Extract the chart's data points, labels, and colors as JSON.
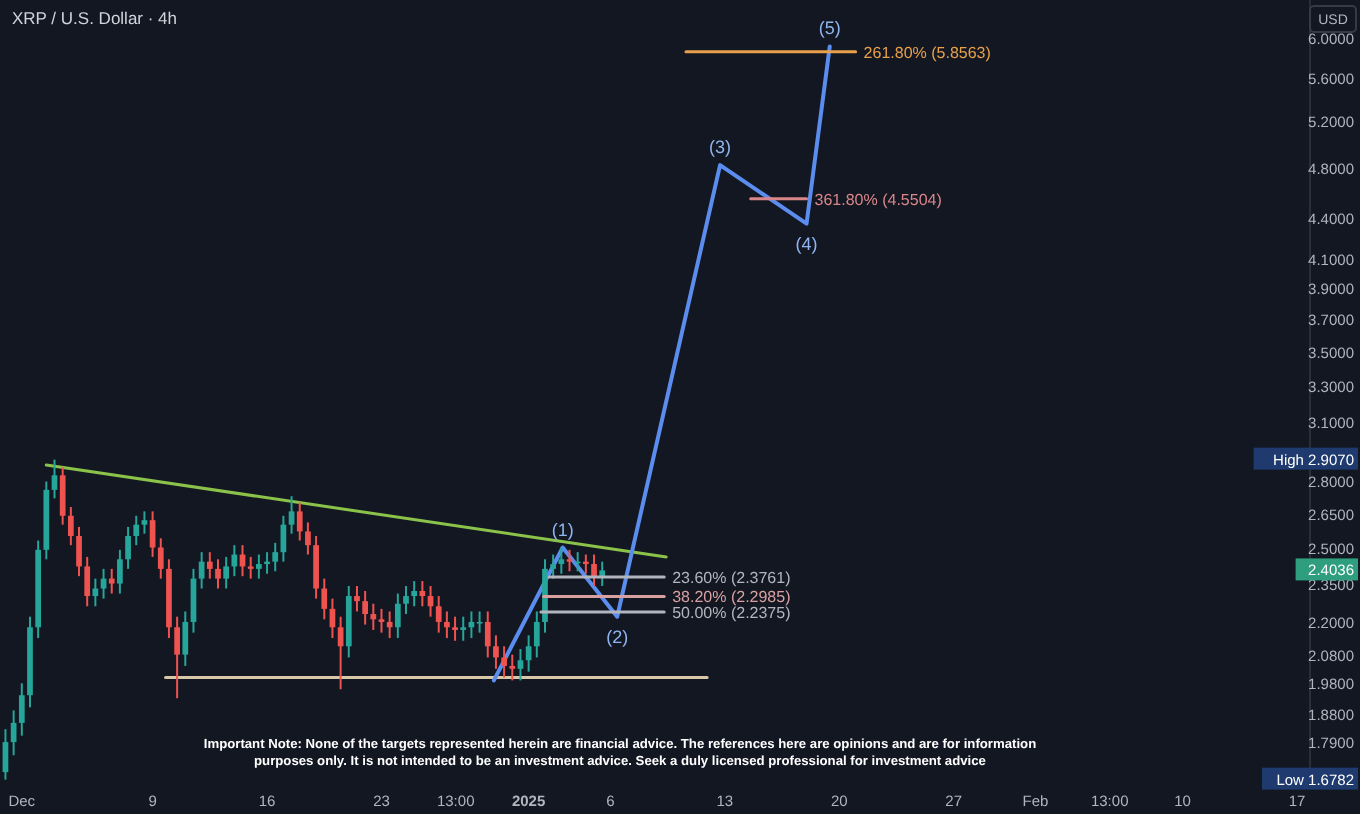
{
  "chart_data": {
    "type": "candlestick",
    "title": "XRP / U.S. Dollar · 4h",
    "log": "y",
    "xlim": [
      "2024-11-29T16:00",
      "2025-02-17T19:00"
    ],
    "xticks": [
      {
        "value": "2024-12-01",
        "label": "Dec"
      },
      {
        "value": "2024-12-09",
        "label": "9"
      },
      {
        "value": "2024-12-16",
        "label": "16"
      },
      {
        "value": "2024-12-23",
        "label": "23"
      },
      {
        "value": "2024-12-27T13:00",
        "label": "13:00"
      },
      {
        "value": "2025-01-01",
        "label": "2025"
      },
      {
        "value": "2025-01-06",
        "label": "6"
      },
      {
        "value": "2025-01-13",
        "label": "13"
      },
      {
        "value": "2025-01-20",
        "label": "20"
      },
      {
        "value": "2025-01-27",
        "label": "27"
      },
      {
        "value": "2025-02-01",
        "label": "Feb"
      },
      {
        "value": "2025-02-05T13:00",
        "label": "13:00"
      },
      {
        "value": "2025-02-10",
        "label": "10"
      },
      {
        "value": "2025-02-17",
        "label": "17"
      }
    ],
    "ylim": [
      1.66,
      6.4
    ],
    "yticks": [
      {
        "value": 6,
        "label": "6.0000"
      },
      {
        "value": 5.6,
        "label": "5.6000"
      },
      {
        "value": 5.2,
        "label": "5.2000"
      },
      {
        "value": 4.8,
        "label": "4.8000"
      },
      {
        "value": 4.4,
        "label": "4.4000"
      },
      {
        "value": 4.1,
        "label": "4.1000"
      },
      {
        "value": 3.9,
        "label": "3.9000"
      },
      {
        "value": 3.7,
        "label": "3.7000"
      },
      {
        "value": 3.5,
        "label": "3.5000"
      },
      {
        "value": 3.3,
        "label": "3.3000"
      },
      {
        "value": 3.1,
        "label": "3.1000"
      },
      {
        "value": 2.8,
        "label": "2.8000"
      },
      {
        "value": 2.65,
        "label": "2.6500"
      },
      {
        "value": 2.5,
        "label": "2.5000"
      },
      {
        "value": 2.35,
        "label": "2.3500"
      },
      {
        "value": 2.2,
        "label": "2.2000"
      },
      {
        "value": 2.08,
        "label": "2.0800"
      },
      {
        "value": 1.98,
        "label": "1.9800"
      },
      {
        "value": 1.88,
        "label": "1.8800"
      },
      {
        "value": 1.79,
        "label": "1.7900"
      }
    ],
    "x": [
      "2024-11-30T00:00",
      "2024-11-30T12:00",
      "2024-12-01T00:00",
      "2024-12-01T12:00",
      "2024-12-02T00:00",
      "2024-12-02T12:00",
      "2024-12-03T00:00",
      "2024-12-03T12:00",
      "2024-12-04T00:00",
      "2024-12-04T12:00",
      "2024-12-05T00:00",
      "2024-12-05T12:00",
      "2024-12-06T00:00",
      "2024-12-06T12:00",
      "2024-12-07T00:00",
      "2024-12-07T12:00",
      "2024-12-08T00:00",
      "2024-12-08T12:00",
      "2024-12-09T00:00",
      "2024-12-09T12:00",
      "2024-12-10T00:00",
      "2024-12-10T12:00",
      "2024-12-11T00:00",
      "2024-12-11T12:00",
      "2024-12-12T00:00",
      "2024-12-12T12:00",
      "2024-12-13T00:00",
      "2024-12-13T12:00",
      "2024-12-14T00:00",
      "2024-12-14T12:00",
      "2024-12-15T00:00",
      "2024-12-15T12:00",
      "2024-12-16T00:00",
      "2024-12-16T12:00",
      "2024-12-17T00:00",
      "2024-12-17T12:00",
      "2024-12-18T00:00",
      "2024-12-18T12:00",
      "2024-12-19T00:00",
      "2024-12-19T12:00",
      "2024-12-20T00:00",
      "2024-12-20T12:00",
      "2024-12-21T00:00",
      "2024-12-21T12:00",
      "2024-12-22T00:00",
      "2024-12-22T12:00",
      "2024-12-23T00:00",
      "2024-12-23T12:00",
      "2024-12-24T00:00",
      "2024-12-24T12:00",
      "2024-12-25T00:00",
      "2024-12-25T12:00",
      "2024-12-26T00:00",
      "2024-12-26T12:00",
      "2024-12-27T00:00",
      "2024-12-27T12:00",
      "2024-12-28T00:00",
      "2024-12-28T12:00",
      "2024-12-29T00:00",
      "2024-12-29T12:00",
      "2024-12-30T00:00",
      "2024-12-30T12:00",
      "2024-12-31T00:00",
      "2024-12-31T12:00",
      "2025-01-01T00:00",
      "2025-01-01T12:00",
      "2025-01-02T00:00",
      "2025-01-02T12:00",
      "2025-01-03T00:00",
      "2025-01-03T12:00",
      "2025-01-04T00:00",
      "2025-01-04T12:00",
      "2025-01-05T00:00",
      "2025-01-05T12:00"
    ],
    "ohlc": [
      [
        1.7,
        1.83,
        1.6782,
        1.79
      ],
      [
        1.79,
        1.89,
        1.75,
        1.85
      ],
      [
        1.85,
        1.98,
        1.81,
        1.94
      ],
      [
        1.94,
        2.22,
        1.9,
        2.18
      ],
      [
        2.18,
        2.53,
        2.14,
        2.49
      ],
      [
        2.49,
        2.8,
        2.45,
        2.76
      ],
      [
        2.76,
        2.907,
        2.72,
        2.83
      ],
      [
        2.83,
        2.87,
        2.6,
        2.64
      ],
      [
        2.64,
        2.68,
        2.51,
        2.55
      ],
      [
        2.55,
        2.59,
        2.38,
        2.42
      ],
      [
        2.42,
        2.46,
        2.26,
        2.3
      ],
      [
        2.3,
        2.37,
        2.26,
        2.33
      ],
      [
        2.33,
        2.41,
        2.29,
        2.37
      ],
      [
        2.37,
        2.41,
        2.31,
        2.35
      ],
      [
        2.35,
        2.49,
        2.31,
        2.45
      ],
      [
        2.45,
        2.59,
        2.41,
        2.55
      ],
      [
        2.55,
        2.64,
        2.51,
        2.6
      ],
      [
        2.6,
        2.66,
        2.56,
        2.62
      ],
      [
        2.62,
        2.66,
        2.46,
        2.5
      ],
      [
        2.5,
        2.54,
        2.37,
        2.41
      ],
      [
        2.41,
        2.45,
        2.14,
        2.18
      ],
      [
        2.18,
        2.22,
        1.93,
        2.08
      ],
      [
        2.08,
        2.24,
        2.04,
        2.2
      ],
      [
        2.2,
        2.41,
        2.16,
        2.37
      ],
      [
        2.37,
        2.48,
        2.33,
        2.44
      ],
      [
        2.44,
        2.48,
        2.37,
        2.41
      ],
      [
        2.41,
        2.45,
        2.33,
        2.37
      ],
      [
        2.37,
        2.46,
        2.33,
        2.42
      ],
      [
        2.42,
        2.51,
        2.38,
        2.47
      ],
      [
        2.47,
        2.51,
        2.38,
        2.42
      ],
      [
        2.42,
        2.46,
        2.37,
        2.41
      ],
      [
        2.41,
        2.47,
        2.37,
        2.43
      ],
      [
        2.43,
        2.48,
        2.39,
        2.44
      ],
      [
        2.44,
        2.52,
        2.4,
        2.48
      ],
      [
        2.48,
        2.64,
        2.44,
        2.6
      ],
      [
        2.6,
        2.73,
        2.56,
        2.66
      ],
      [
        2.66,
        2.7,
        2.53,
        2.57
      ],
      [
        2.57,
        2.61,
        2.47,
        2.51
      ],
      [
        2.51,
        2.55,
        2.29,
        2.33
      ],
      [
        2.33,
        2.37,
        2.21,
        2.25
      ],
      [
        2.25,
        2.29,
        2.14,
        2.18
      ],
      [
        2.18,
        2.22,
        1.96,
        2.11
      ],
      [
        2.11,
        2.34,
        2.07,
        2.3
      ],
      [
        2.3,
        2.34,
        2.24,
        2.28
      ],
      [
        2.28,
        2.32,
        2.19,
        2.23
      ],
      [
        2.23,
        2.27,
        2.17,
        2.21
      ],
      [
        2.21,
        2.25,
        2.16,
        2.2
      ],
      [
        2.2,
        2.24,
        2.14,
        2.18
      ],
      [
        2.18,
        2.31,
        2.14,
        2.27
      ],
      [
        2.27,
        2.34,
        2.23,
        2.3
      ],
      [
        2.3,
        2.36,
        2.26,
        2.32
      ],
      [
        2.32,
        2.36,
        2.26,
        2.3
      ],
      [
        2.3,
        2.34,
        2.22,
        2.26
      ],
      [
        2.26,
        2.3,
        2.16,
        2.2
      ],
      [
        2.2,
        2.24,
        2.14,
        2.18
      ],
      [
        2.18,
        2.22,
        2.13,
        2.17
      ],
      [
        2.17,
        2.22,
        2.13,
        2.18
      ],
      [
        2.18,
        2.24,
        2.14,
        2.2
      ],
      [
        2.2,
        2.24,
        2.16,
        2.2
      ],
      [
        2.2,
        2.24,
        2.07,
        2.11
      ],
      [
        2.11,
        2.15,
        2.03,
        2.07
      ],
      [
        2.07,
        2.11,
        2.0,
        2.04
      ],
      [
        2.04,
        2.08,
        1.99,
        2.03
      ],
      [
        2.03,
        2.1,
        1.99,
        2.06
      ],
      [
        2.06,
        2.15,
        2.02,
        2.11
      ],
      [
        2.11,
        2.24,
        2.07,
        2.2
      ],
      [
        2.2,
        2.45,
        2.16,
        2.41
      ],
      [
        2.41,
        2.47,
        2.37,
        2.43
      ],
      [
        2.43,
        2.5,
        2.39,
        2.45
      ],
      [
        2.45,
        2.49,
        2.4,
        2.44
      ],
      [
        2.44,
        2.48,
        2.4,
        2.44
      ],
      [
        2.44,
        2.47,
        2.39,
        2.43
      ],
      [
        2.43,
        2.47,
        2.34,
        2.38
      ],
      [
        2.38,
        2.44,
        2.34,
        2.4036
      ]
    ],
    "series": [
      {
        "type": "line",
        "color": "#8bc34a",
        "x": [
          "2024-12-02T12:00",
          "2025-01-09T10:00"
        ],
        "values": [
          2.88,
          2.46
        ]
      },
      {
        "type": "line",
        "color": "#d8c8a8",
        "x": [
          "2024-12-09T19:00",
          "2025-01-11T22:00"
        ],
        "values": [
          2.0,
          2.0
        ]
      },
      {
        "type": "line",
        "name": "23.60% (2.3761)",
        "color": "#b2b5be",
        "x": [
          "2025-01-02T06:00",
          "2025-01-09T07:00"
        ],
        "values": [
          2.3761,
          2.3761
        ]
      },
      {
        "type": "line",
        "name": "38.20% (2.2985)",
        "color": "#d9a0a0",
        "x": [
          "2025-01-01T22:00",
          "2025-01-09T07:00"
        ],
        "values": [
          2.2985,
          2.2985
        ]
      },
      {
        "type": "line",
        "name": "50.00% (2.2375)",
        "color": "#b2b5be",
        "x": [
          "2025-01-01T18:00",
          "2025-01-09T07:00"
        ],
        "values": [
          2.2375,
          2.2375
        ]
      },
      {
        "type": "line",
        "name": "261.80% (5.8563)",
        "color": "#e8a04a",
        "x": [
          "2025-01-10T15:00",
          "2025-01-21T00:00"
        ],
        "values": [
          5.8563,
          5.8563
        ]
      },
      {
        "type": "line",
        "name": "361.80% (4.5504)",
        "color": "#d9868a",
        "x": [
          "2025-01-14T14:00",
          "2025-01-18T00:00"
        ],
        "values": [
          4.5504,
          4.5504
        ]
      },
      {
        "type": "line",
        "color": "#5b8def",
        "x": [
          "2024-12-29T21:00",
          "2025-01-03T02:00",
          "2025-01-06T10:00",
          "2025-01-12T17:00",
          "2025-01-18T00:00",
          "2025-01-19T10:00"
        ],
        "values": [
          1.99,
          2.5,
          2.22,
          4.82,
          4.36,
          5.91
        ]
      }
    ],
    "annotations": [
      "Important Note: None of the targets represented herein are financial advice. The references here are opinions and are for information purposes only. It is not intended to be an investment advice. Seek a duly licensed professional for investment advice",
      "USD",
      {
        "text": "(1)",
        "x": "2025-01-03T02:00",
        "y": 2.5
      },
      {
        "text": "(2)",
        "x": "2025-01-06T10:00",
        "y": 2.22
      },
      {
        "text": "(3)",
        "x": "2025-01-12T17:00",
        "y": 4.82
      },
      {
        "text": "(4)",
        "x": "2025-01-18T00:00",
        "y": 4.36
      },
      {
        "text": "(5)",
        "x": "2025-01-19T10:00",
        "y": 5.91
      },
      "High 2.9070",
      "2.4036",
      "Low 1.6782"
    ]
  }
}
